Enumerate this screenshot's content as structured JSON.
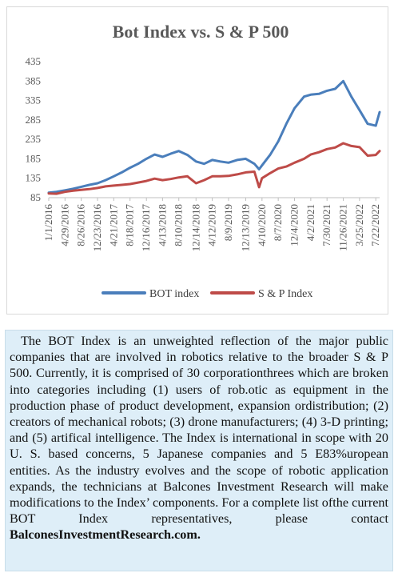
{
  "chart_data": {
    "type": "line",
    "title": "Bot Index vs. S & P 500",
    "xlabel": "",
    "ylabel": "",
    "ylim": [
      85,
      435
    ],
    "yticks": [
      85,
      135,
      185,
      235,
      285,
      335,
      385,
      435
    ],
    "xticks": [
      "1/1/2016",
      "4/29/2016",
      "8/26/2016",
      "12/23/2016",
      "4/21/2017",
      "8/18/2017",
      "12/16/2017",
      "4/13/2018",
      "8/10/2018",
      "12/14/2018",
      "4/12/2019",
      "8/9/2019",
      "12/13/2019",
      "4/10/2020",
      "8/7/2020",
      "12/4/2020",
      "4/2/2021",
      "7/30/2021",
      "11/26/2021",
      "3/25/2022",
      "7/22/2022"
    ],
    "legend_position": "bottom",
    "grid": false,
    "series": [
      {
        "name": "BOT index",
        "color": "#4a7ebb",
        "x": [
          "1/1/2016",
          "2/26/2016",
          "4/29/2016",
          "6/28/2016",
          "8/26/2016",
          "10/24/2016",
          "12/23/2016",
          "2/20/2017",
          "4/21/2017",
          "6/19/2017",
          "8/18/2017",
          "10/16/2017",
          "12/16/2017",
          "2/14/2018",
          "4/13/2018",
          "6/11/2018",
          "8/10/2018",
          "10/12/2018",
          "12/14/2018",
          "2/11/2019",
          "4/12/2019",
          "6/10/2019",
          "8/9/2019",
          "10/11/2019",
          "12/13/2019",
          "2/14/2020",
          "3/20/2020",
          "4/10/2020",
          "6/8/2020",
          "8/7/2020",
          "10/5/2020",
          "12/4/2020",
          "2/12/2021",
          "4/2/2021",
          "6/1/2021",
          "7/30/2021",
          "9/28/2021",
          "11/26/2021",
          "1/24/2022",
          "3/25/2022",
          "5/23/2022",
          "7/22/2022",
          "8/19/2022"
        ],
        "values": [
          98,
          100,
          104,
          108,
          113,
          118,
          122,
          130,
          140,
          150,
          162,
          172,
          185,
          196,
          190,
          198,
          205,
          195,
          178,
          172,
          182,
          178,
          175,
          182,
          185,
          172,
          158,
          168,
          195,
          230,
          275,
          315,
          345,
          350,
          352,
          360,
          365,
          385,
          345,
          310,
          275,
          270,
          305
        ]
      },
      {
        "name": "S & P Index",
        "color": "#be4b48",
        "x": [
          "1/1/2016",
          "2/26/2016",
          "4/29/2016",
          "6/28/2016",
          "8/26/2016",
          "10/24/2016",
          "12/23/2016",
          "2/20/2017",
          "4/21/2017",
          "6/19/2017",
          "8/18/2017",
          "10/16/2017",
          "12/16/2017",
          "2/14/2018",
          "4/13/2018",
          "6/11/2018",
          "8/10/2018",
          "10/12/2018",
          "12/14/2018",
          "2/11/2019",
          "4/12/2019",
          "6/10/2019",
          "8/9/2019",
          "10/11/2019",
          "12/13/2019",
          "2/14/2020",
          "3/20/2020",
          "4/10/2020",
          "6/8/2020",
          "8/7/2020",
          "10/5/2020",
          "12/4/2020",
          "2/12/2021",
          "4/2/2021",
          "6/1/2021",
          "7/30/2021",
          "9/28/2021",
          "11/26/2021",
          "1/24/2022",
          "3/25/2022",
          "5/23/2022",
          "7/22/2022",
          "8/19/2022"
        ],
        "values": [
          96,
          95,
          100,
          103,
          105,
          107,
          110,
          114,
          116,
          118,
          120,
          124,
          128,
          134,
          130,
          133,
          137,
          140,
          122,
          130,
          140,
          140,
          141,
          145,
          150,
          152,
          112,
          135,
          148,
          160,
          165,
          175,
          185,
          196,
          202,
          210,
          214,
          225,
          218,
          215,
          193,
          195,
          205
        ]
      }
    ]
  },
  "caption": {
    "text": "The BOT Index is an unweighted reflection of the major public companies that are involved in robotics relative to the broader S & P 500. Currently, it is comprised of 30 corporationthrees which are broken into categories including (1) users of rob.otic as equipment in the production phase of product development, expansion ordistribution; (2) creators of mechanical robots; (3) drone manufacturers; (4) 3-D printing; and (5) artifical intelligence. The Index is international in scope with 20 U. S. based concerns, 5 Japanese companies and 5 E83%uropean entities. As the industry evolves and the scope of robotic application expands, the technicians at Balcones Investment Research will make modifications to the Index’ components. For a  complete list ofthe current BOT Index representatives, please contact",
    "link": "BalconesInvestmentResearch.com."
  }
}
